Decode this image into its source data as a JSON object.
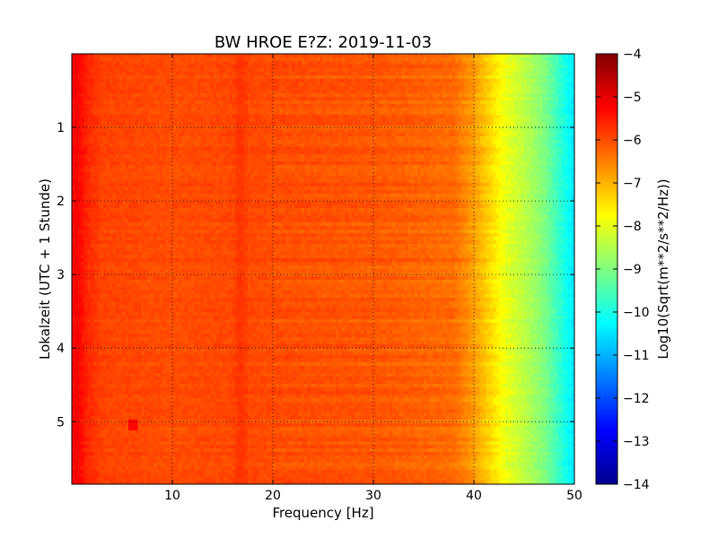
{
  "chart_data": {
    "type": "heatmap",
    "title": "BW HROE E?Z: 2019-11-03",
    "xlabel": "Frequency [Hz]",
    "ylabel": "Lokalzeit (UTC + 1 Stunde)",
    "colorbar_label": "Log10(Sqrt(m**2/s**2/Hz))",
    "xlim": [
      0,
      50
    ],
    "ylim": [
      5.85,
      0.0
    ],
    "x_ticks": [
      10,
      20,
      30,
      40,
      50
    ],
    "y_ticks": [
      1,
      2,
      3,
      4,
      5
    ],
    "colorbar_range": [
      -14,
      -4
    ],
    "colorbar_ticks": [
      -4,
      -5,
      -6,
      -7,
      -8,
      -9,
      -10,
      -11,
      -12,
      -13,
      -14
    ],
    "colormap": "jet",
    "grid": true,
    "grid_style": "dotted",
    "frequency_profile": {
      "frequency_hz": [
        0,
        0.5,
        1.5,
        3,
        10,
        16,
        16.8,
        17.6,
        20,
        30,
        38,
        40,
        42,
        43,
        45,
        47,
        48,
        49,
        50
      ],
      "log10_amplitude": [
        -5.4,
        -5.2,
        -5.6,
        -5.9,
        -6.0,
        -5.95,
        -5.7,
        -5.95,
        -6.0,
        -6.1,
        -6.3,
        -6.8,
        -7.5,
        -7.9,
        -8.4,
        -9.0,
        -9.5,
        -10.0,
        -10.5
      ]
    },
    "features": [
      {
        "type": "vertical-band",
        "frequency_hz": 16.8,
        "log10_amplitude": -5.7
      },
      {
        "type": "spot",
        "frequency_hz": 6.1,
        "time_h": 5.05,
        "log10_amplitude": -5.3
      }
    ]
  }
}
